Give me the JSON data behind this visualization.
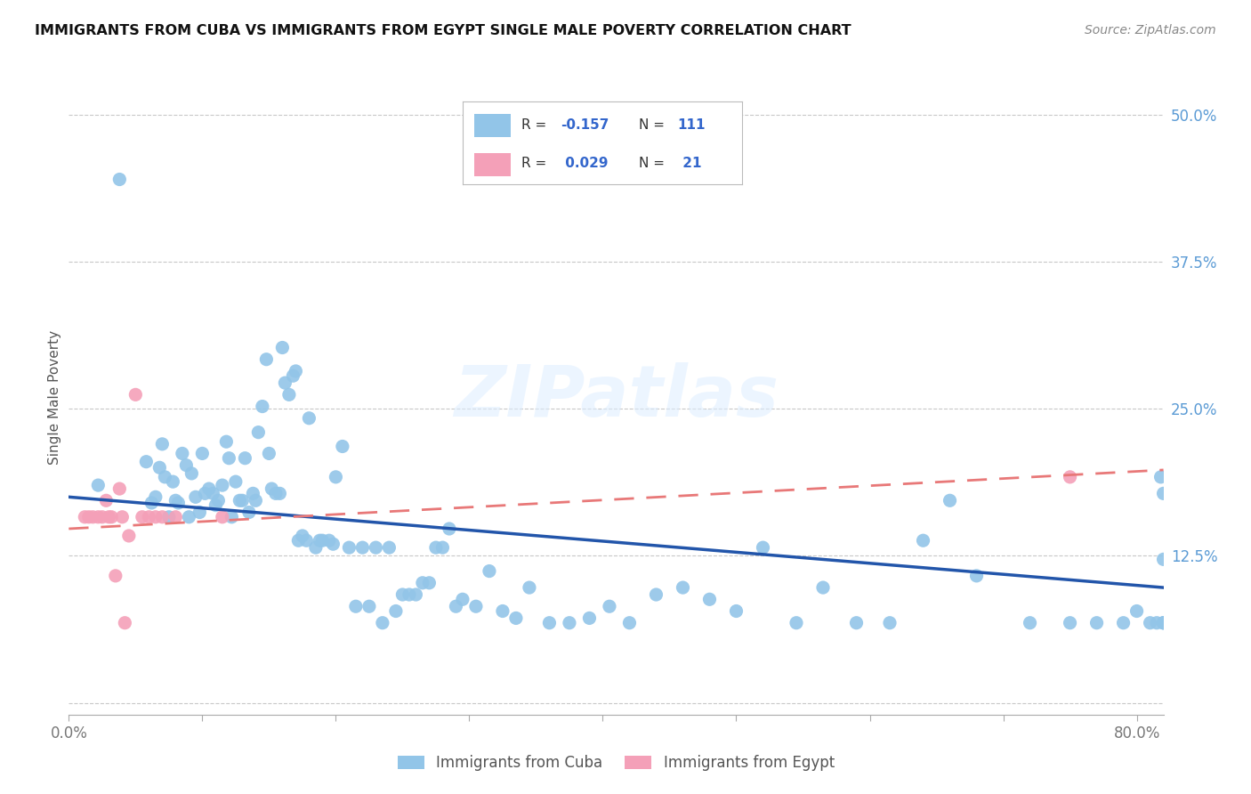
{
  "title": "IMMIGRANTS FROM CUBA VS IMMIGRANTS FROM EGYPT SINGLE MALE POVERTY CORRELATION CHART",
  "source": "Source: ZipAtlas.com",
  "ylabel": "Single Male Poverty",
  "yticks_right": [
    0.0,
    0.125,
    0.25,
    0.375,
    0.5
  ],
  "ytick_labels_right": [
    "",
    "12.5%",
    "25.0%",
    "37.5%",
    "50.0%"
  ],
  "xlim": [
    0.0,
    0.82
  ],
  "ylim": [
    -0.01,
    0.53
  ],
  "cuba_color": "#92c5e8",
  "egypt_color": "#f4a0b8",
  "cuba_line_color": "#2255aa",
  "egypt_line_color": "#e87878",
  "legend_cuba_label": "Immigrants from Cuba",
  "legend_egypt_label": "Immigrants from Egypt",
  "cuba_R": -0.157,
  "cuba_N": 111,
  "egypt_R": 0.029,
  "egypt_N": 21,
  "watermark": "ZIPatlas",
  "cuba_line_x0": 0.0,
  "cuba_line_y0": 0.175,
  "cuba_line_x1": 0.82,
  "cuba_line_y1": 0.098,
  "egypt_line_x0": 0.0,
  "egypt_line_y0": 0.148,
  "egypt_line_x1": 0.82,
  "egypt_line_y1": 0.198,
  "cuba_x": [
    0.022,
    0.038,
    0.058,
    0.062,
    0.065,
    0.068,
    0.07,
    0.072,
    0.075,
    0.078,
    0.08,
    0.082,
    0.085,
    0.088,
    0.09,
    0.092,
    0.095,
    0.098,
    0.1,
    0.102,
    0.105,
    0.108,
    0.11,
    0.112,
    0.115,
    0.118,
    0.12,
    0.122,
    0.125,
    0.128,
    0.13,
    0.132,
    0.135,
    0.138,
    0.14,
    0.142,
    0.145,
    0.148,
    0.15,
    0.152,
    0.155,
    0.158,
    0.16,
    0.162,
    0.165,
    0.168,
    0.17,
    0.172,
    0.175,
    0.178,
    0.18,
    0.185,
    0.188,
    0.19,
    0.195,
    0.198,
    0.2,
    0.205,
    0.21,
    0.215,
    0.22,
    0.225,
    0.23,
    0.235,
    0.24,
    0.245,
    0.25,
    0.255,
    0.26,
    0.265,
    0.27,
    0.275,
    0.28,
    0.285,
    0.29,
    0.295,
    0.305,
    0.315,
    0.325,
    0.335,
    0.345,
    0.36,
    0.375,
    0.39,
    0.405,
    0.42,
    0.44,
    0.46,
    0.48,
    0.5,
    0.52,
    0.545,
    0.565,
    0.59,
    0.615,
    0.64,
    0.66,
    0.68,
    0.72,
    0.75,
    0.77,
    0.79,
    0.8,
    0.81,
    0.815,
    0.818,
    0.82,
    0.82,
    0.82,
    0.82,
    0.82
  ],
  "cuba_y": [
    0.185,
    0.445,
    0.205,
    0.17,
    0.175,
    0.2,
    0.22,
    0.192,
    0.158,
    0.188,
    0.172,
    0.17,
    0.212,
    0.202,
    0.158,
    0.195,
    0.175,
    0.162,
    0.212,
    0.178,
    0.182,
    0.178,
    0.168,
    0.172,
    0.185,
    0.222,
    0.208,
    0.158,
    0.188,
    0.172,
    0.172,
    0.208,
    0.162,
    0.178,
    0.172,
    0.23,
    0.252,
    0.292,
    0.212,
    0.182,
    0.178,
    0.178,
    0.302,
    0.272,
    0.262,
    0.278,
    0.282,
    0.138,
    0.142,
    0.138,
    0.242,
    0.132,
    0.138,
    0.138,
    0.138,
    0.135,
    0.192,
    0.218,
    0.132,
    0.082,
    0.132,
    0.082,
    0.132,
    0.068,
    0.132,
    0.078,
    0.092,
    0.092,
    0.092,
    0.102,
    0.102,
    0.132,
    0.132,
    0.148,
    0.082,
    0.088,
    0.082,
    0.112,
    0.078,
    0.072,
    0.098,
    0.068,
    0.068,
    0.072,
    0.082,
    0.068,
    0.092,
    0.098,
    0.088,
    0.078,
    0.132,
    0.068,
    0.098,
    0.068,
    0.068,
    0.138,
    0.172,
    0.108,
    0.068,
    0.068,
    0.068,
    0.068,
    0.078,
    0.068,
    0.068,
    0.192,
    0.178,
    0.068,
    0.068,
    0.068,
    0.122
  ],
  "egypt_x": [
    0.012,
    0.015,
    0.018,
    0.022,
    0.025,
    0.028,
    0.03,
    0.032,
    0.035,
    0.038,
    0.04,
    0.042,
    0.045,
    0.05,
    0.055,
    0.06,
    0.065,
    0.07,
    0.08,
    0.115,
    0.75
  ],
  "egypt_y": [
    0.158,
    0.158,
    0.158,
    0.158,
    0.158,
    0.172,
    0.158,
    0.158,
    0.108,
    0.182,
    0.158,
    0.068,
    0.142,
    0.262,
    0.158,
    0.158,
    0.158,
    0.158,
    0.158,
    0.158,
    0.192
  ]
}
